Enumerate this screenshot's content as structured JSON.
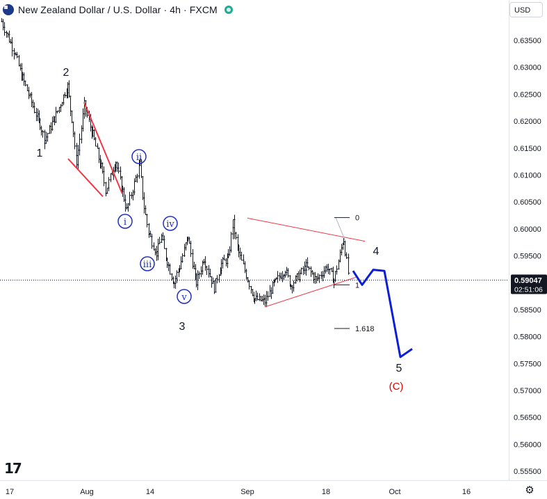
{
  "header": {
    "title": "New Zealand Dollar / U.S. Dollar · 4h · FXCM",
    "currency": "USD"
  },
  "colors": {
    "candle": "#131722",
    "trendline": "#f23645",
    "projection": "#0c1fd4",
    "wave_circle": "#1e2fc0",
    "wave_c": "#e30000",
    "price_badge": "#131722"
  },
  "icons": {
    "logo": "tradingview-logo-icon",
    "settings": "gear-icon",
    "flag": "nzd-flag-icon",
    "status": "market-status-icon"
  },
  "price_badge": {
    "price": "0.59047",
    "countdown": "02:51:06"
  },
  "fib_labels": [
    "0",
    "1",
    "1.618"
  ],
  "wave_labels": {
    "major": [
      "1",
      "2",
      "3",
      "4",
      "5"
    ],
    "minor": [
      "i",
      "ii",
      "iii",
      "iv",
      "v"
    ],
    "corrective": "(C)"
  },
  "chart_data": {
    "type": "candlestick",
    "symbol": "NZDUSD",
    "timeframe": "4h",
    "ylim": [
      0.5515,
      0.6395
    ],
    "y_ticks": [
      "0.63500",
      "0.63000",
      "0.62500",
      "0.62000",
      "0.61500",
      "0.61000",
      "0.60500",
      "0.60000",
      "0.59500",
      "0.59000",
      "0.58500",
      "0.58000",
      "0.57500",
      "0.57000",
      "0.56500",
      "0.56000",
      "0.55500"
    ],
    "x_ticks": [
      "17",
      "Aug",
      "14",
      "Sep",
      "18",
      "Oct",
      "16"
    ],
    "last_price": 0.59047,
    "series": [
      {
        "name": "",
        "pivots": [
          0.6385,
          0.633,
          0.628,
          0.6235,
          0.6195,
          0.6165,
          0.6205,
          0.6265,
          0.6205,
          0.6125,
          0.623,
          0.6175,
          0.6115,
          0.607,
          0.6125,
          0.607,
          0.6035,
          0.612,
          0.604,
          0.599,
          0.5955,
          0.5985,
          0.594,
          0.59,
          0.593,
          0.5985,
          0.59,
          0.5945,
          0.589,
          0.5935,
          0.5945,
          0.601,
          0.5955,
          0.587,
          0.5865,
          0.59,
          0.5925,
          0.5895,
          0.593,
          0.5905,
          0.593,
          0.5905,
          0.598,
          0.5905
        ]
      }
    ],
    "trendlines": [
      {
        "from": [
          0.6235,
          0.6235
        ],
        "to": [
          0.6065,
          0.6065
        ]
      },
      {
        "from": [
          0.602,
          0.602
        ],
        "to": [
          0.5977,
          0.5977
        ]
      },
      {
        "from": [
          0.5855,
          0.5855
        ],
        "to": [
          0.591,
          0.591
        ]
      }
    ],
    "fibonacci": [
      {
        "level": "0",
        "price": 0.6021
      },
      {
        "level": "1",
        "price": 0.5896
      },
      {
        "level": "1.618",
        "price": 0.5815
      }
    ],
    "projection": [
      0.5922,
      0.5896,
      0.5924,
      0.5922,
      0.5762,
      0.5777
    ]
  }
}
